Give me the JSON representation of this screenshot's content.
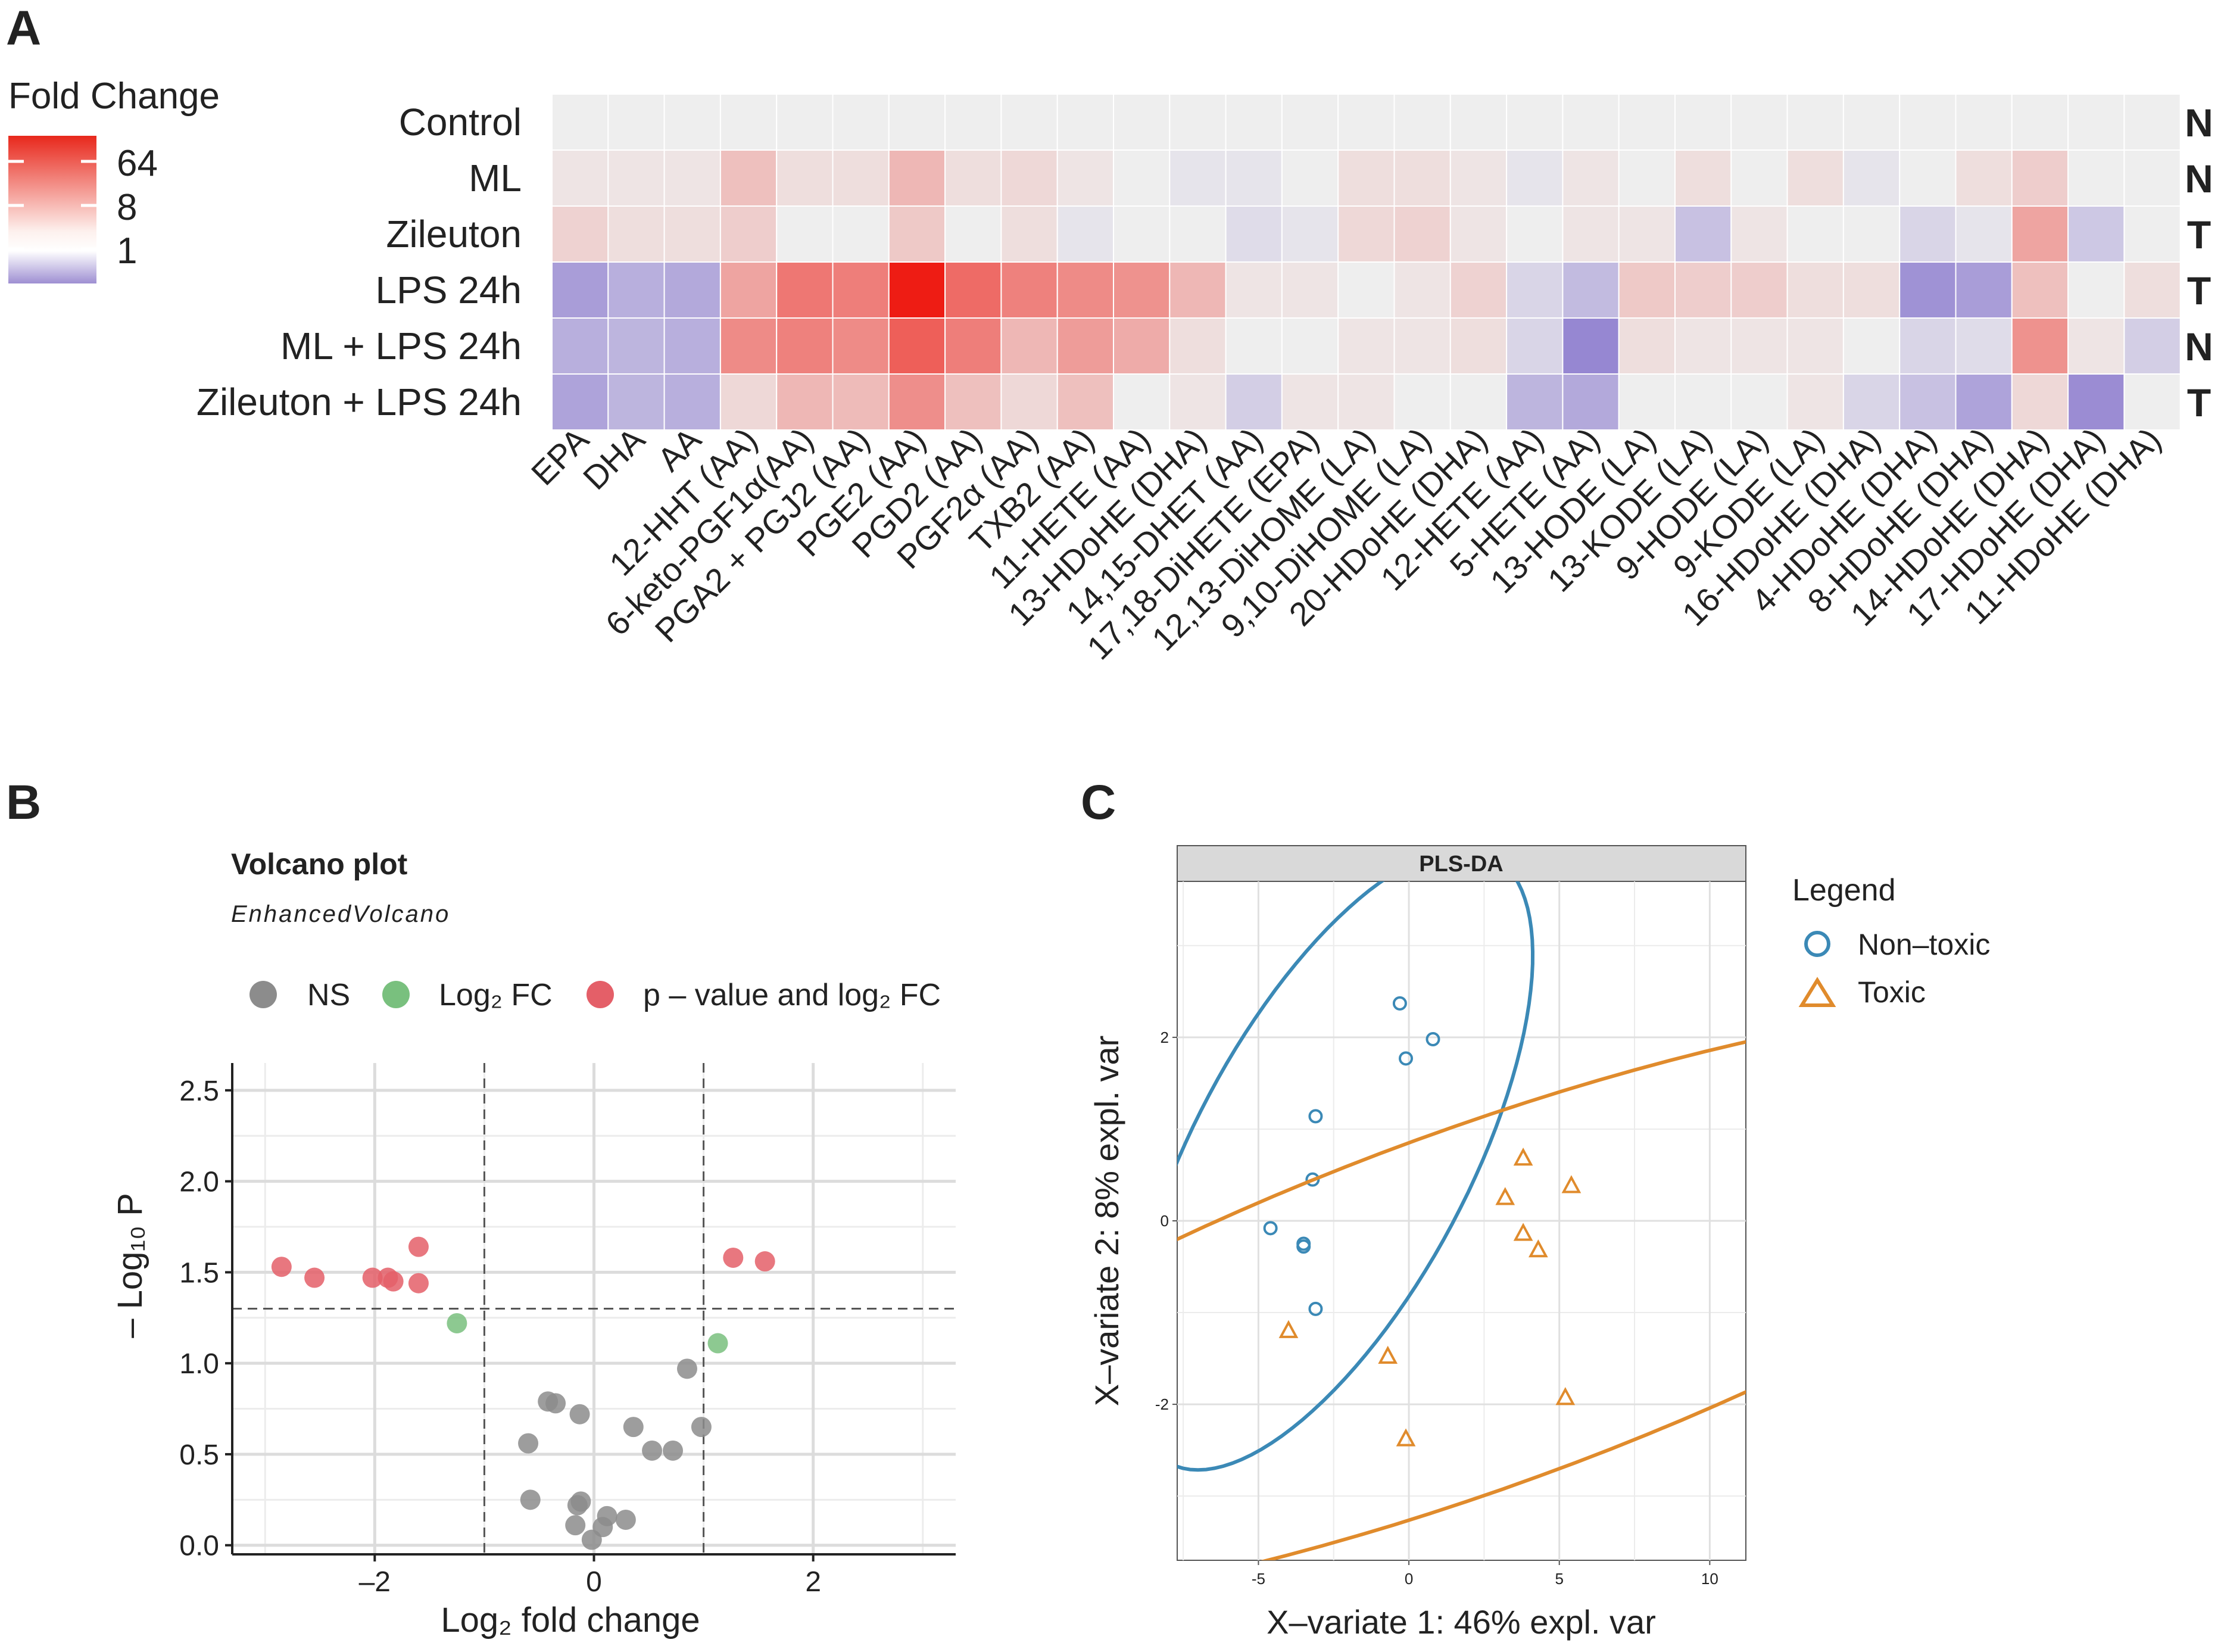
{
  "chart_data": [
    {
      "panel": "A",
      "type": "heatmap",
      "legend_title": "Fold Change",
      "legend_ticks": [
        "64",
        "8",
        "1"
      ],
      "rows": [
        "Control",
        "ML",
        "Zileuton",
        "LPS 24h",
        "ML + LPS 24h",
        "Zileuton + LPS 24h"
      ],
      "row_tags": [
        "N",
        "N",
        "T",
        "T",
        "N",
        "T"
      ],
      "columns": [
        "EPA",
        "DHA",
        "AA",
        "12-HHT (AA)",
        "6-keto-PGF1α(AA)",
        "PGA2 + PGJ2 (AA)",
        "PGE2 (AA)",
        "PGD2 (AA)",
        "PGF2α (AA)",
        "TXB2 (AA)",
        "11-HETE (AA)",
        "13-HDoHE (DHA)",
        "14,15-DHET (AA)",
        "17,18-DiHETE (EPA)",
        "12,13-DiHOME (LA)",
        "9,10-DiHOME (LA)",
        "20-HDoHE (DHA)",
        "12-HETE (AA)",
        "5-HETE (AA)",
        "13-HODE (LA)",
        "13-KODE (LA)",
        "9-HODE (LA)",
        "9-KODE (LA)",
        "16-HDoHE (DHA)",
        "4-HDoHE (DHA)",
        "8-HDoHE (DHA)",
        "14-HDoHE (DHA)",
        "17-HDoHE (DHA)",
        "11-HDoHE (DHA)"
      ],
      "log2_fold_change": [
        [
          0,
          0,
          0,
          0,
          0,
          0,
          0,
          0,
          0,
          0,
          0,
          0,
          0,
          0,
          0,
          0,
          0,
          0,
          0,
          0,
          0,
          0,
          0,
          0,
          0,
          0,
          0,
          0,
          0
        ],
        [
          0.1,
          0.1,
          0.1,
          0.8,
          0.2,
          0.2,
          1.0,
          0.2,
          0.3,
          0.1,
          0.0,
          -0.1,
          -0.1,
          0.0,
          0.2,
          0.2,
          0.1,
          -0.1,
          0.1,
          0.0,
          0.2,
          0.0,
          0.2,
          -0.1,
          0.0,
          0.2,
          0.5,
          0.0,
          0.0
        ],
        [
          0.4,
          0.2,
          0.2,
          0.5,
          0.0,
          0.0,
          0.6,
          0.0,
          0.2,
          -0.1,
          0.0,
          0.0,
          -0.2,
          -0.1,
          0.3,
          0.4,
          0.1,
          0.0,
          0.1,
          0.1,
          -0.6,
          0.1,
          0.0,
          0.0,
          -0.3,
          -0.1,
          1.5,
          -0.5,
          0.0
        ],
        [
          -1.2,
          -0.9,
          -1.0,
          1.5,
          2.8,
          2.6,
          6.0,
          3.2,
          2.5,
          2.2,
          2.0,
          1.0,
          0.1,
          0.1,
          0.0,
          0.1,
          0.4,
          -0.3,
          -0.7,
          0.6,
          0.5,
          0.5,
          0.2,
          0.2,
          -1.4,
          -1.2,
          0.8,
          0.0,
          0.2
        ],
        [
          -0.9,
          -0.8,
          -0.9,
          2.2,
          2.5,
          2.2,
          3.6,
          2.6,
          1.0,
          1.7,
          1.3,
          0.2,
          0.0,
          0.0,
          0.1,
          0.1,
          0.2,
          -0.3,
          -1.6,
          0.2,
          0.1,
          0.1,
          0.1,
          0.0,
          -0.3,
          -0.2,
          2.0,
          0.1,
          -0.4
        ],
        [
          -1.1,
          -0.8,
          -0.9,
          0.3,
          1.0,
          0.9,
          2.1,
          0.8,
          0.3,
          0.8,
          0.0,
          0.1,
          -0.4,
          0.1,
          0.1,
          0.0,
          0.0,
          -0.8,
          -1.0,
          0.0,
          0.0,
          0.0,
          0.1,
          -0.3,
          -0.6,
          -1.1,
          0.3,
          -1.5,
          0.0
        ]
      ]
    },
    {
      "panel": "B",
      "type": "scatter",
      "title": "Volcano plot",
      "subtitle": "EnhancedVolcano",
      "legend": [
        {
          "label": "NS",
          "color": "#8c8c8c"
        },
        {
          "label": "Log₂ FC",
          "color": "#79c07e"
        },
        {
          "label": "p – value and log₂ FC",
          "color": "#e45f68"
        }
      ],
      "xlabel": "Log₂ fold change",
      "ylabel": "– Log₁₀ P",
      "xlim": [
        -3.3,
        3.3
      ],
      "ylim": [
        -0.05,
        2.65
      ],
      "xticks": [
        -2,
        0,
        2
      ],
      "yticks": [
        0.0,
        0.5,
        1.0,
        1.5,
        2.0,
        2.5
      ],
      "ytick_labels": [
        "0.0",
        "0.5",
        "1.0",
        "1.5",
        "2.0",
        "2.5"
      ],
      "xtick_labels": [
        "–2",
        "0",
        "2"
      ],
      "cutoffs": {
        "log2fc": [
          -1,
          1
        ],
        "neg_log10_p": 1.3
      },
      "points": [
        {
          "x": -2.85,
          "y": 1.53,
          "group": "sig"
        },
        {
          "x": -2.55,
          "y": 1.47,
          "group": "sig"
        },
        {
          "x": -2.02,
          "y": 1.47,
          "group": "sig"
        },
        {
          "x": -1.88,
          "y": 1.47,
          "group": "sig"
        },
        {
          "x": -1.83,
          "y": 1.45,
          "group": "sig"
        },
        {
          "x": -1.6,
          "y": 1.64,
          "group": "sig"
        },
        {
          "x": -1.6,
          "y": 1.44,
          "group": "sig"
        },
        {
          "x": 1.27,
          "y": 1.58,
          "group": "sig"
        },
        {
          "x": 1.56,
          "y": 1.56,
          "group": "sig"
        },
        {
          "x": -1.25,
          "y": 1.22,
          "group": "fc"
        },
        {
          "x": 1.13,
          "y": 1.11,
          "group": "fc"
        },
        {
          "x": -0.42,
          "y": 0.79,
          "group": "ns"
        },
        {
          "x": -0.35,
          "y": 0.78,
          "group": "ns"
        },
        {
          "x": -0.13,
          "y": 0.72,
          "group": "ns"
        },
        {
          "x": -0.6,
          "y": 0.56,
          "group": "ns"
        },
        {
          "x": -0.58,
          "y": 0.25,
          "group": "ns"
        },
        {
          "x": 0.36,
          "y": 0.65,
          "group": "ns"
        },
        {
          "x": 0.53,
          "y": 0.52,
          "group": "ns"
        },
        {
          "x": 0.72,
          "y": 0.52,
          "group": "ns"
        },
        {
          "x": 0.85,
          "y": 0.97,
          "group": "ns"
        },
        {
          "x": 0.98,
          "y": 0.65,
          "group": "ns"
        },
        {
          "x": -0.15,
          "y": 0.22,
          "group": "ns"
        },
        {
          "x": -0.12,
          "y": 0.24,
          "group": "ns"
        },
        {
          "x": -0.17,
          "y": 0.11,
          "group": "ns"
        },
        {
          "x": -0.02,
          "y": 0.03,
          "group": "ns"
        },
        {
          "x": 0.08,
          "y": 0.1,
          "group": "ns"
        },
        {
          "x": 0.12,
          "y": 0.16,
          "group": "ns"
        },
        {
          "x": 0.29,
          "y": 0.14,
          "group": "ns"
        }
      ]
    },
    {
      "panel": "C",
      "type": "scatter",
      "title": "PLS-DA",
      "legend_title": "Legend",
      "legend": [
        {
          "label": "Non–toxic",
          "color": "#3b89b6",
          "shape": "circle"
        },
        {
          "label": "Toxic",
          "color": "#e08b2c",
          "shape": "triangle"
        }
      ],
      "xlabel": "X–variate 1: 46% expl. var",
      "ylabel": "X–variate 2: 8% expl. var",
      "xlim": [
        -7.7,
        11.2
      ],
      "ylim": [
        -3.7,
        3.7
      ],
      "xticks": [
        -5,
        0,
        5,
        10
      ],
      "yticks": [
        -2,
        0,
        2
      ],
      "xtick_labels": [
        "-5",
        "0",
        "5",
        "10"
      ],
      "ytick_labels": [
        "-2",
        "0",
        "2"
      ],
      "series": [
        {
          "name": "Non–toxic",
          "points": [
            [
              -0.3,
              2.37
            ],
            [
              -0.1,
              1.77
            ],
            [
              0.8,
              1.98
            ],
            [
              -3.1,
              1.14
            ],
            [
              -3.2,
              0.45
            ],
            [
              -4.6,
              -0.08
            ],
            [
              -3.5,
              -0.25
            ],
            [
              -3.5,
              -0.28
            ],
            [
              -3.1,
              -0.96
            ]
          ],
          "ellipse": {
            "cx": -2.6,
            "cy": 0.67,
            "rx": 3.75,
            "ry": 1.5,
            "angle_deg": 62
          }
        },
        {
          "name": "Toxic",
          "points": [
            [
              3.8,
              0.68
            ],
            [
              3.2,
              0.25
            ],
            [
              5.4,
              0.38
            ],
            [
              3.8,
              -0.14
            ],
            [
              4.3,
              -0.32
            ],
            [
              -4.0,
              -1.2
            ],
            [
              -0.7,
              -1.48
            ],
            [
              5.2,
              -1.93
            ],
            [
              -0.1,
              -2.38
            ]
          ],
          "ellipse": {
            "cx": 2.3,
            "cy": -0.95,
            "rx": 8.05,
            "ry": 1.95,
            "angle_deg": 20
          }
        }
      ]
    }
  ],
  "panel_labels": [
    "A",
    "B",
    "C"
  ]
}
